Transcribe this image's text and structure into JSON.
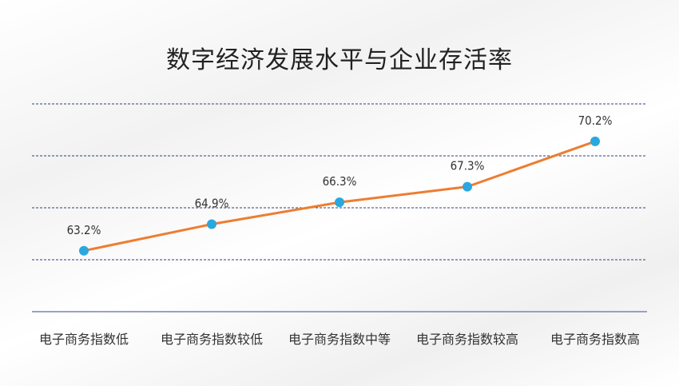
{
  "chart_data": {
    "type": "line",
    "title": "数字经济发展水平与企业存活率",
    "categories": [
      "电子商务指数低",
      "电子商务指数较低",
      "电子商务指数中等",
      "电子商务指数较高",
      "电子商务指数高"
    ],
    "values": [
      63.2,
      64.9,
      66.3,
      67.3,
      70.2
    ],
    "data_labels": [
      "63.2%",
      "64.9%",
      "66.3%",
      "67.3%",
      "70.2%"
    ],
    "ylim": [
      59.3,
      72.6
    ],
    "grid": true,
    "colors": {
      "line": "#ed7d31",
      "marker": "#29a8e0",
      "grid": "#2f3f7a",
      "axis": "#7a84b0"
    }
  }
}
